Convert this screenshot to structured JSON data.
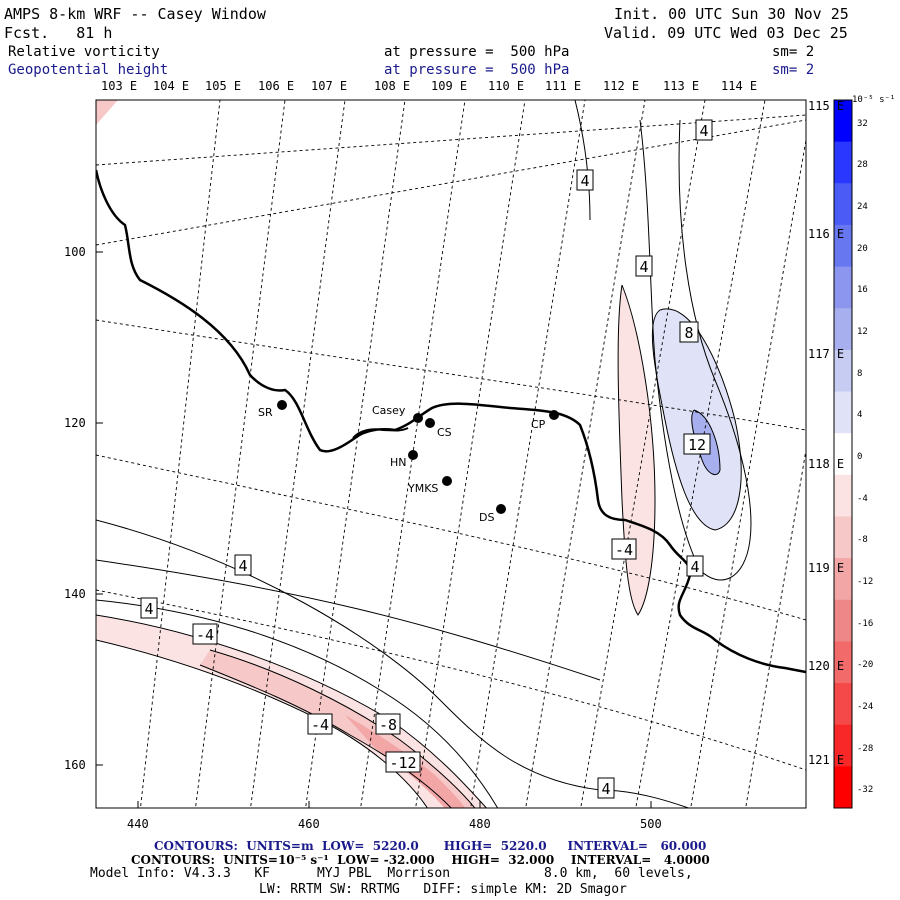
{
  "header": {
    "title": "AMPS 8-km WRF -- Casey Window",
    "fcst": "Fcst.   81 h",
    "init": "Init. 00 UTC Sun 30 Nov 25",
    "valid": "Valid. 09 UTC Wed 03 Dec 25",
    "field1_name": "Relative vorticity",
    "field1_level": "at pressure =  500 hPa",
    "field1_sm": "sm= 2",
    "field2_name": "Geopotential height",
    "field2_level": "at pressure =  500 hPa",
    "field2_sm": "sm= 2"
  },
  "longitude_labels_top": [
    "103 E",
    "104 E",
    "105 E",
    "106 E",
    "107 E",
    "108 E",
    "109 E",
    "110 E",
    "111 E",
    "112 E",
    "113 E",
    "114 E"
  ],
  "longitude_labels_right": [
    "115 E",
    "116 E",
    "117 E",
    "118 E",
    "119 E",
    "120 E",
    "121 E"
  ],
  "grid_x_labels": [
    "440",
    "460",
    "480",
    "500"
  ],
  "grid_y_labels": [
    "100",
    "120",
    "140",
    "160"
  ],
  "stations": [
    {
      "id": "SR",
      "label": "SR"
    },
    {
      "id": "Casey",
      "label": "Casey"
    },
    {
      "id": "CS",
      "label": "CS"
    },
    {
      "id": "CP",
      "label": "CP"
    },
    {
      "id": "HN",
      "label": "HN"
    },
    {
      "id": "YMKS",
      "label": "YMKS"
    },
    {
      "id": "DS",
      "label": "DS"
    }
  ],
  "contour_labels": [
    "4",
    "4",
    "4",
    "8",
    "12",
    "4",
    "-4",
    "4",
    "4",
    "-4",
    "-4",
    "-8",
    "-12",
    "4"
  ],
  "colorbar": {
    "unit": "10⁻⁵ s⁻¹",
    "ticks": [
      "32",
      "28",
      "24",
      "20",
      "16",
      "12",
      "8",
      "4",
      "0",
      "-4",
      "-8",
      "-12",
      "-16",
      "-20",
      "-24",
      "-28",
      "-32"
    ],
    "colors": [
      "#0000ff",
      "#2a38ff",
      "#4a5cf5",
      "#6677f0",
      "#8c96ee",
      "#a8afee",
      "#c7ccf2",
      "#e0e3f7",
      "#ffffff",
      "#fbe3e3",
      "#f6c8c8",
      "#f2a6a6",
      "#ee8888",
      "#f36a6a",
      "#f54848",
      "#f92828",
      "#ff0000"
    ]
  },
  "footer": {
    "line1_label": "CONTOURS:  UNITS=m  LOW=  5220.0      HIGH=  5220.0     INTERVAL=   60.000",
    "line2_label": "CONTOURS:  UNITS=10⁻⁵ s⁻¹  LOW= -32.000    HIGH=  32.000    INTERVAL=   4.0000",
    "model_info": "Model Info: V4.3.3   KF      MYJ PBL  Morrison            8.0 km,  60 levels,",
    "physics": "LW: RRTM SW: RRTMG   DIFF: simple KM: 2D Smagor"
  }
}
